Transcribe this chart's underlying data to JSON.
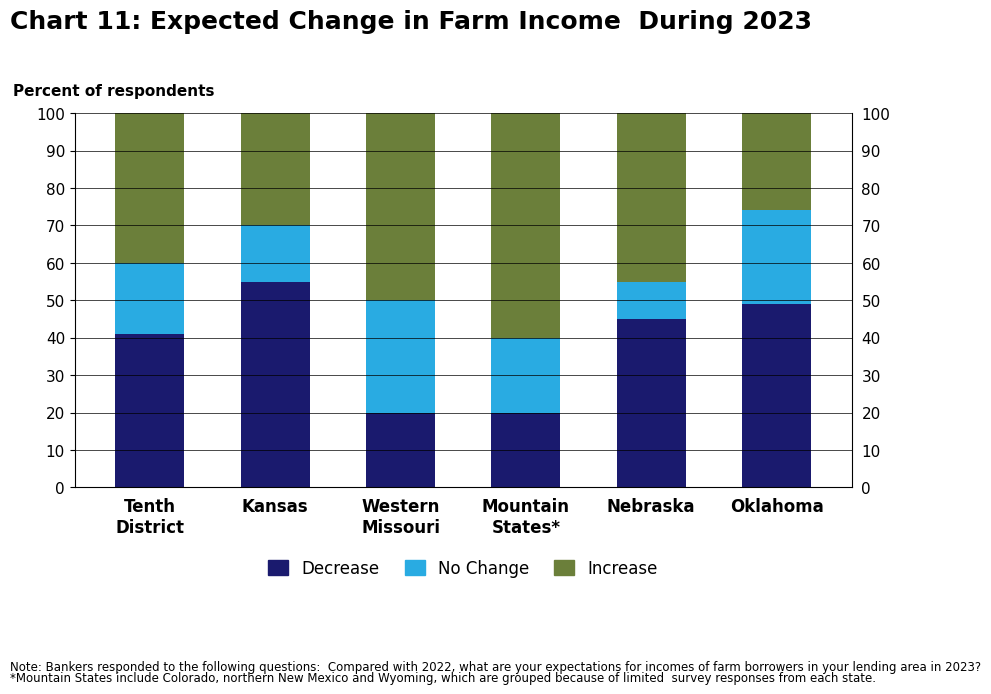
{
  "title": "Chart 11: Expected Change in Farm Income  During 2023",
  "ylabel_left": "Percent of respondents",
  "categories": [
    "Tenth\nDistrict",
    "Kansas",
    "Western\nMissouri",
    "Mountain\nStates*",
    "Nebraska",
    "Oklahoma"
  ],
  "decrease": [
    41,
    55,
    20,
    20,
    45,
    49
  ],
  "no_change": [
    19,
    15,
    30,
    20,
    10,
    25
  ],
  "increase": [
    40,
    30,
    50,
    60,
    45,
    26
  ],
  "colors": {
    "decrease": "#1a1a6e",
    "no_change": "#29abe2",
    "increase": "#6b7f3a"
  },
  "legend_labels": [
    "Decrease",
    "No Change",
    "Increase"
  ],
  "ylim": [
    0,
    100
  ],
  "yticks": [
    0,
    10,
    20,
    30,
    40,
    50,
    60,
    70,
    80,
    90,
    100
  ],
  "note_line1": "Note: Bankers responded to the following questions:  Compared with 2022, what are your expectations for incomes of farm borrowers in your lending area in 2023?",
  "note_line2": "*Mountain States include Colorado, northern New Mexico and Wyoming, which are grouped because of limited  survey responses from each state.",
  "bar_width": 0.55
}
